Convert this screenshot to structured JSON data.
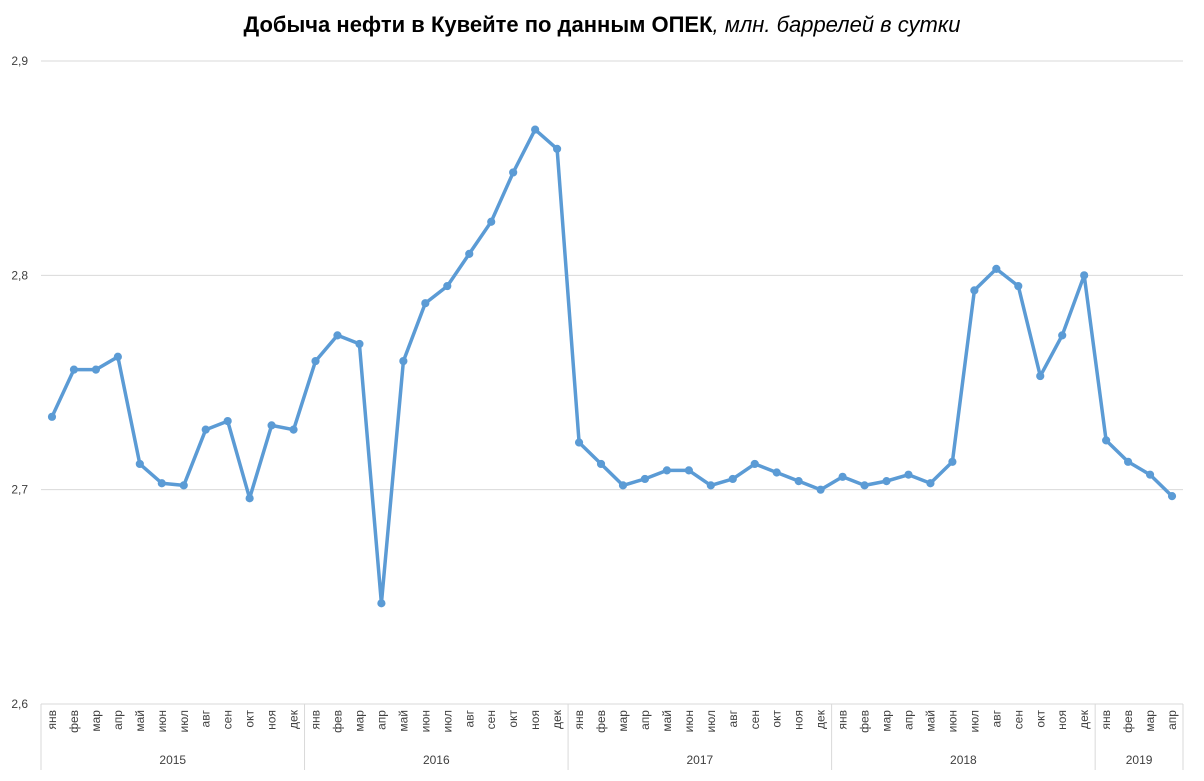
{
  "chart_data": {
    "type": "line",
    "title": "Добыча нефти в Кувейте по данным ОПЕК",
    "title_unit": ", млн. баррелей в сутки",
    "xlabel": "",
    "ylabel": "",
    "ylim": [
      2.6,
      2.9
    ],
    "yticks": [
      "2,6",
      "2,7",
      "2,8",
      "2,9"
    ],
    "ytick_values": [
      2.6,
      2.7,
      2.8,
      2.9
    ],
    "grid": true,
    "line_color": "#5B9BD5",
    "categories": [
      "янв",
      "фев",
      "мар",
      "апр",
      "май",
      "июн",
      "июл",
      "авг",
      "сен",
      "окт",
      "ноя",
      "дек",
      "янв",
      "фев",
      "мар",
      "апр",
      "май",
      "июн",
      "июл",
      "авг",
      "сен",
      "окт",
      "ноя",
      "дек",
      "янв",
      "фев",
      "мар",
      "апр",
      "май",
      "июн",
      "июл",
      "авг",
      "сен",
      "окт",
      "ноя",
      "дек",
      "янв",
      "фев",
      "мар",
      "апр",
      "май",
      "июн",
      "июл",
      "авг",
      "сен",
      "окт",
      "ноя",
      "дек",
      "янв",
      "фев",
      "мар",
      "апр"
    ],
    "years": [
      {
        "label": "2015",
        "count": 12
      },
      {
        "label": "2016",
        "count": 12
      },
      {
        "label": "2017",
        "count": 12
      },
      {
        "label": "2018",
        "count": 12
      },
      {
        "label": "2019",
        "count": 4
      }
    ],
    "values": [
      2.734,
      2.756,
      2.756,
      2.762,
      2.712,
      2.703,
      2.702,
      2.728,
      2.732,
      2.696,
      2.73,
      2.728,
      2.76,
      2.772,
      2.768,
      2.647,
      2.76,
      2.787,
      2.795,
      2.81,
      2.825,
      2.848,
      2.868,
      2.859,
      2.722,
      2.712,
      2.702,
      2.705,
      2.709,
      2.709,
      2.702,
      2.705,
      2.712,
      2.708,
      2.704,
      2.7,
      2.706,
      2.702,
      2.704,
      2.707,
      2.703,
      2.713,
      2.793,
      2.803,
      2.795,
      2.753,
      2.772,
      2.8,
      2.723,
      2.713,
      2.707,
      2.697
    ]
  }
}
